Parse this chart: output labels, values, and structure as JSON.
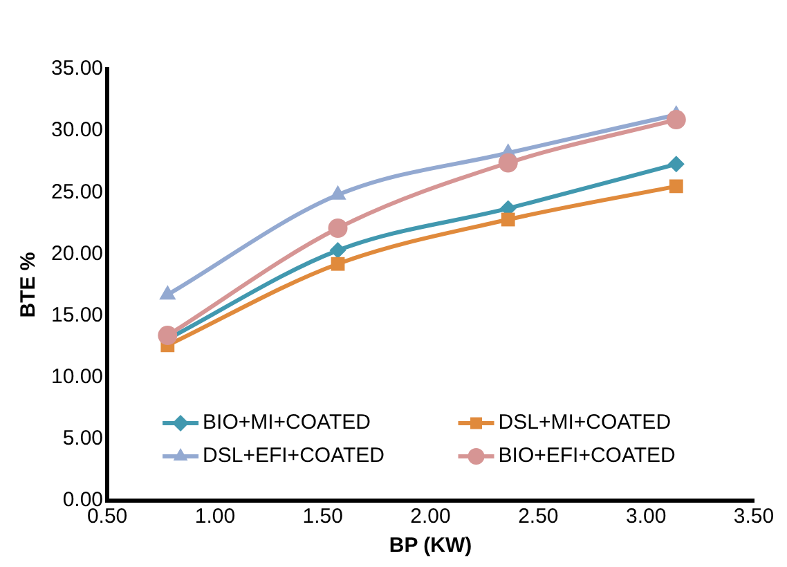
{
  "chart_data": {
    "type": "line",
    "xlabel": "BP (KW)",
    "ylabel": "BTE %",
    "x": [
      0.78,
      1.57,
      2.36,
      3.14
    ],
    "series": [
      {
        "name": "BIO+MI+COATED",
        "color": "#4198af",
        "marker": "diamond",
        "values": [
          13.1,
          20.3,
          23.7,
          27.3
        ]
      },
      {
        "name": "DSL+MI+COATED",
        "color": "#e08a3c",
        "marker": "square",
        "values": [
          12.6,
          19.2,
          22.8,
          25.5
        ]
      },
      {
        "name": "DSL+EFI+COATED",
        "color": "#93a9d1",
        "marker": "triangle",
        "values": [
          16.7,
          24.8,
          28.2,
          31.3
        ]
      },
      {
        "name": "BIO+EFI+COATED",
        "color": "#d69594",
        "marker": "circle",
        "values": [
          13.4,
          22.1,
          27.4,
          30.9
        ]
      }
    ],
    "xlim": [
      0.5,
      3.5
    ],
    "xticks": [
      {
        "value": 0.5,
        "label": "0.50"
      },
      {
        "value": 1,
        "label": "1.00"
      },
      {
        "value": 1.5,
        "label": "1.50"
      },
      {
        "value": 2,
        "label": "2.00"
      },
      {
        "value": 2.5,
        "label": "2.50"
      },
      {
        "value": 3,
        "label": "3.00"
      },
      {
        "value": 3.5,
        "label": "3.50"
      }
    ],
    "ylim": [
      0,
      35
    ],
    "yticks": [
      {
        "value": 0,
        "label": "0.00"
      },
      {
        "value": 5,
        "label": "5.00"
      },
      {
        "value": 10,
        "label": "10.00"
      },
      {
        "value": 15,
        "label": "15.00"
      },
      {
        "value": 20,
        "label": "20.00"
      },
      {
        "value": 25,
        "label": "25.00"
      },
      {
        "value": 30,
        "label": "30.00"
      },
      {
        "value": 35,
        "label": "35.00"
      }
    ],
    "grid": false,
    "legend": "bottom",
    "line_style": "solid"
  }
}
